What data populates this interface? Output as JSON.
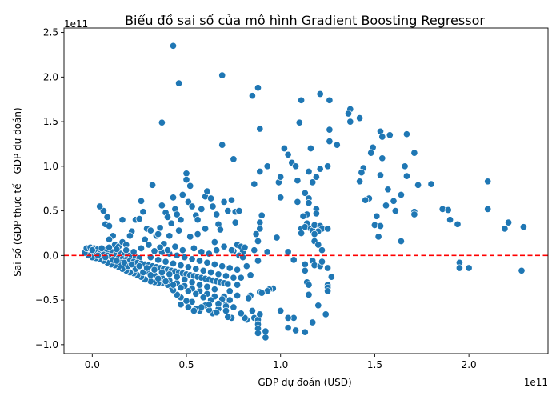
{
  "chart_data": {
    "type": "scatter",
    "title": "Biểu đồ sai số của mô hình Gradient Boosting Regressor",
    "xlabel": "GDP dự đoán (USD)",
    "ylabel": "Sai số (GDP thực tế - GDP dự đoán)",
    "x_offset_text": "1e11",
    "y_offset_text": "1e11",
    "xlim": [
      -0.15,
      2.42
    ],
    "ylim": [
      -1.1,
      2.55
    ],
    "x_ticks": [
      0,
      0.5,
      1.0,
      1.5,
      2.0
    ],
    "x_tick_labels": [
      "0.0",
      "0.5",
      "1.0",
      "1.5",
      "2.0"
    ],
    "y_ticks": [
      -1.0,
      -0.5,
      0.0,
      0.5,
      1.0,
      1.5,
      2.0,
      2.5
    ],
    "y_tick_labels": [
      "−1.0",
      "−0.5",
      "0.0",
      "0.5",
      "1.0",
      "1.5",
      "2.0",
      "2.5"
    ],
    "point_color": "#1f77b4",
    "reference_line": {
      "y": 0,
      "color": "#ff0000",
      "style": "dashed"
    },
    "grid": false,
    "points": [
      [
        0.43,
        2.35
      ],
      [
        0.46,
        1.93
      ],
      [
        0.69,
        2.02
      ],
      [
        0.88,
        1.88
      ],
      [
        0.85,
        1.79
      ],
      [
        0.37,
        1.49
      ],
      [
        1.11,
        1.74
      ],
      [
        1.21,
        1.81
      ],
      [
        1.26,
        1.74
      ],
      [
        0.89,
        1.42
      ],
      [
        1.1,
        1.49
      ],
      [
        1.37,
        1.64
      ],
      [
        1.36,
        1.59
      ],
      [
        1.42,
        1.54
      ],
      [
        1.37,
        1.5
      ],
      [
        1.53,
        1.39
      ],
      [
        1.54,
        1.33
      ],
      [
        1.58,
        1.35
      ],
      [
        1.67,
        1.36
      ],
      [
        1.26,
        1.41
      ],
      [
        1.26,
        1.28
      ],
      [
        1.3,
        1.24
      ],
      [
        1.02,
        1.2
      ],
      [
        1.16,
        1.2
      ],
      [
        1.49,
        1.21
      ],
      [
        1.48,
        1.15
      ],
      [
        1.54,
        1.09
      ],
      [
        1.71,
        1.15
      ],
      [
        1.66,
        1.0
      ],
      [
        0.69,
        1.24
      ],
      [
        0.75,
        1.08
      ],
      [
        1.04,
        1.13
      ],
      [
        1.06,
        1.04
      ],
      [
        1.08,
        1.0
      ],
      [
        1.21,
        0.97
      ],
      [
        1.25,
        1.0
      ],
      [
        1.15,
        0.94
      ],
      [
        1.44,
        0.98
      ],
      [
        1.43,
        0.93
      ],
      [
        1.53,
        0.9
      ],
      [
        1.67,
        0.89
      ],
      [
        1.73,
        0.79
      ],
      [
        1.8,
        0.8
      ],
      [
        0.89,
        0.94
      ],
      [
        0.93,
        1.0
      ],
      [
        0.86,
        0.8
      ],
      [
        0.99,
        0.82
      ],
      [
        1.0,
        0.88
      ],
      [
        1.09,
        0.84
      ],
      [
        1.17,
        0.82
      ],
      [
        1.19,
        0.88
      ],
      [
        1.42,
        0.83
      ],
      [
        1.57,
        0.74
      ],
      [
        1.64,
        0.68
      ],
      [
        1.6,
        0.61
      ],
      [
        1.56,
        0.56
      ],
      [
        1.61,
        0.5
      ],
      [
        1.71,
        0.49
      ],
      [
        1.71,
        0.46
      ],
      [
        1.86,
        0.52
      ],
      [
        1.89,
        0.51
      ],
      [
        1.9,
        0.4
      ],
      [
        1.94,
        0.35
      ],
      [
        2.1,
        0.83
      ],
      [
        2.1,
        0.52
      ],
      [
        2.21,
        0.37
      ],
      [
        2.19,
        0.3
      ],
      [
        2.29,
        0.32
      ],
      [
        2.28,
        -0.17
      ],
      [
        1.95,
        -0.08
      ],
      [
        1.95,
        -0.14
      ],
      [
        2.0,
        -0.14
      ],
      [
        1.47,
        0.64
      ],
      [
        1.45,
        0.62
      ],
      [
        1.51,
        0.44
      ],
      [
        1.5,
        0.34
      ],
      [
        1.53,
        0.33
      ],
      [
        1.52,
        0.21
      ],
      [
        1.64,
        0.16
      ],
      [
        1.0,
        0.65
      ],
      [
        1.09,
        0.6
      ],
      [
        1.13,
        0.7
      ],
      [
        1.15,
        0.64
      ],
      [
        1.15,
        0.59
      ],
      [
        1.19,
        0.52
      ],
      [
        1.19,
        0.47
      ],
      [
        1.14,
        0.46
      ],
      [
        1.12,
        0.44
      ],
      [
        1.14,
        0.36
      ],
      [
        1.11,
        0.3
      ],
      [
        1.13,
        0.32
      ],
      [
        1.16,
        0.3
      ],
      [
        1.17,
        0.28
      ],
      [
        1.18,
        0.34
      ],
      [
        1.21,
        0.33
      ],
      [
        1.22,
        0.3
      ],
      [
        1.25,
        0.3
      ],
      [
        1.2,
        0.27
      ],
      [
        1.18,
        0.24
      ],
      [
        1.11,
        0.25
      ],
      [
        1.18,
        0.16
      ],
      [
        1.2,
        0.12
      ],
      [
        1.22,
        0.06
      ],
      [
        1.04,
        0.04
      ],
      [
        0.98,
        0.2
      ],
      [
        0.9,
        0.45
      ],
      [
        0.89,
        0.37
      ],
      [
        0.89,
        0.3
      ],
      [
        0.87,
        0.24
      ],
      [
        0.88,
        0.16
      ],
      [
        0.86,
        0.06
      ],
      [
        0.93,
        0.04
      ],
      [
        0.88,
        -0.06
      ],
      [
        0.76,
        0.49
      ],
      [
        0.78,
        0.5
      ],
      [
        0.77,
        0.12
      ],
      [
        0.75,
        0.05
      ],
      [
        0.8,
        0.04
      ],
      [
        0.79,
        0.1
      ],
      [
        0.81,
        0.09
      ],
      [
        1.07,
        -0.05
      ],
      [
        1.13,
        -0.1
      ],
      [
        1.17,
        -0.06
      ],
      [
        1.18,
        -0.11
      ],
      [
        1.21,
        -0.12
      ],
      [
        1.25,
        -0.14
      ],
      [
        1.13,
        -0.17
      ],
      [
        1.14,
        -0.3
      ],
      [
        1.15,
        -0.33
      ],
      [
        1.15,
        -0.44
      ],
      [
        1.2,
        -0.56
      ],
      [
        1.25,
        -0.33
      ],
      [
        1.25,
        -0.36
      ],
      [
        1.25,
        -0.4
      ],
      [
        1.27,
        -0.24
      ],
      [
        1.22,
        -0.07
      ],
      [
        1.17,
        -0.75
      ],
      [
        1.13,
        -0.86
      ],
      [
        1.07,
        -0.7
      ],
      [
        1.04,
        -0.7
      ],
      [
        1.04,
        -0.81
      ],
      [
        1.08,
        -0.84
      ],
      [
        1.0,
        -0.62
      ],
      [
        1.24,
        -0.66
      ],
      [
        0.96,
        -0.37
      ],
      [
        0.94,
        -0.38
      ],
      [
        0.93,
        -0.4
      ],
      [
        0.89,
        -0.41
      ],
      [
        0.9,
        -0.42
      ],
      [
        0.84,
        -0.45
      ],
      [
        0.83,
        -0.48
      ],
      [
        0.85,
        -0.62
      ],
      [
        0.86,
        -0.7
      ],
      [
        0.88,
        -0.72
      ],
      [
        0.88,
        -0.77
      ],
      [
        0.89,
        -0.66
      ],
      [
        0.88,
        -0.82
      ],
      [
        0.92,
        -0.85
      ],
      [
        0.92,
        -0.92
      ],
      [
        0.88,
        -0.87
      ],
      [
        0.82,
        -0.72
      ],
      [
        0.81,
        -0.7
      ],
      [
        0.79,
        -0.65
      ],
      [
        0.74,
        -0.7
      ],
      [
        0.72,
        -0.69
      ],
      [
        0.7,
        -0.46
      ],
      [
        0.71,
        -0.55
      ],
      [
        0.67,
        -0.6
      ],
      [
        0.64,
        -0.65
      ],
      [
        0.62,
        -0.61
      ],
      [
        0.6,
        -0.56
      ],
      [
        0.57,
        -0.62
      ],
      [
        0.55,
        -0.6
      ],
      [
        0.53,
        -0.52
      ],
      [
        0.5,
        -0.51
      ],
      [
        0.47,
        -0.47
      ],
      [
        0.45,
        -0.44
      ],
      [
        0.43,
        -0.39
      ],
      [
        0.42,
        -0.35
      ],
      [
        0.4,
        -0.33
      ],
      [
        0.37,
        -0.31
      ],
      [
        0.35,
        -0.31
      ],
      [
        0.33,
        -0.3
      ],
      [
        0.31,
        -0.29
      ],
      [
        0.28,
        -0.27
      ],
      [
        0.26,
        -0.24
      ],
      [
        0.24,
        -0.22
      ],
      [
        0.22,
        -0.2
      ],
      [
        0.2,
        -0.19
      ],
      [
        0.18,
        -0.17
      ],
      [
        0.16,
        -0.15
      ],
      [
        0.14,
        -0.13
      ],
      [
        0.12,
        -0.11
      ],
      [
        0.1,
        -0.1
      ],
      [
        0.08,
        -0.08
      ],
      [
        0.06,
        -0.06
      ],
      [
        0.04,
        -0.04
      ],
      [
        0.02,
        -0.03
      ],
      [
        0.0,
        -0.02
      ],
      [
        -0.02,
        0.0
      ],
      [
        -0.04,
        0.03
      ],
      [
        -0.03,
        0.08
      ],
      [
        -0.01,
        0.09
      ],
      [
        0.01,
        0.08
      ],
      [
        0.03,
        0.07
      ],
      [
        0.05,
        0.07
      ],
      [
        0.07,
        0.06
      ],
      [
        0.09,
        0.05
      ],
      [
        0.11,
        0.04
      ],
      [
        0.13,
        0.03
      ],
      [
        0.15,
        0.02
      ],
      [
        0.17,
        0.01
      ],
      [
        0.19,
        0.0
      ],
      [
        0.21,
        -0.01
      ],
      [
        0.23,
        -0.02
      ],
      [
        0.25,
        -0.03
      ],
      [
        0.02,
        0.03
      ],
      [
        0.04,
        0.02
      ],
      [
        0.06,
        0.01
      ],
      [
        0.08,
        0.0
      ],
      [
        0.1,
        -0.01
      ],
      [
        0.12,
        -0.02
      ],
      [
        0.14,
        -0.03
      ],
      [
        0.16,
        -0.04
      ],
      [
        0.18,
        -0.05
      ],
      [
        0.2,
        -0.06
      ],
      [
        0.22,
        -0.07
      ],
      [
        0.24,
        -0.08
      ],
      [
        0.26,
        -0.09
      ],
      [
        0.28,
        -0.1
      ],
      [
        0.3,
        -0.11
      ],
      [
        0.32,
        -0.12
      ],
      [
        0.34,
        -0.13
      ],
      [
        0.36,
        -0.14
      ],
      [
        0.38,
        -0.15
      ],
      [
        0.4,
        -0.16
      ],
      [
        0.42,
        -0.17
      ],
      [
        0.44,
        -0.18
      ],
      [
        0.46,
        -0.19
      ],
      [
        0.48,
        -0.2
      ],
      [
        0.5,
        -0.21
      ],
      [
        0.52,
        -0.22
      ],
      [
        0.54,
        -0.23
      ],
      [
        0.56,
        -0.24
      ],
      [
        0.58,
        -0.25
      ],
      [
        0.6,
        -0.26
      ],
      [
        0.62,
        -0.27
      ],
      [
        0.64,
        -0.28
      ],
      [
        0.66,
        -0.29
      ],
      [
        0.68,
        -0.3
      ],
      [
        0.7,
        -0.31
      ],
      [
        0.72,
        -0.32
      ],
      [
        0.29,
        -0.18
      ],
      [
        0.33,
        -0.22
      ],
      [
        0.37,
        -0.25
      ],
      [
        0.41,
        -0.28
      ],
      [
        0.45,
        -0.31
      ],
      [
        0.49,
        -0.34
      ],
      [
        0.53,
        -0.37
      ],
      [
        0.57,
        -0.4
      ],
      [
        0.61,
        -0.43
      ],
      [
        0.65,
        -0.46
      ],
      [
        0.69,
        -0.49
      ],
      [
        0.73,
        -0.5
      ],
      [
        0.31,
        -0.02
      ],
      [
        0.35,
        -0.05
      ],
      [
        0.39,
        -0.07
      ],
      [
        0.43,
        -0.09
      ],
      [
        0.47,
        -0.11
      ],
      [
        0.51,
        -0.13
      ],
      [
        0.55,
        -0.15
      ],
      [
        0.59,
        -0.17
      ],
      [
        0.63,
        -0.19
      ],
      [
        0.67,
        -0.21
      ],
      [
        0.71,
        -0.23
      ],
      [
        0.75,
        -0.25
      ],
      [
        0.33,
        0.05
      ],
      [
        0.37,
        0.04
      ],
      [
        0.41,
        0.02
      ],
      [
        0.45,
        0.0
      ],
      [
        0.49,
        -0.02
      ],
      [
        0.53,
        -0.04
      ],
      [
        0.57,
        -0.06
      ],
      [
        0.61,
        -0.08
      ],
      [
        0.65,
        -0.1
      ],
      [
        0.69,
        -0.12
      ],
      [
        0.73,
        -0.14
      ],
      [
        0.77,
        -0.16
      ],
      [
        0.06,
        0.5
      ],
      [
        0.08,
        0.43
      ],
      [
        0.07,
        0.35
      ],
      [
        0.09,
        0.33
      ],
      [
        0.11,
        0.22
      ],
      [
        0.09,
        0.18
      ],
      [
        0.12,
        0.12
      ],
      [
        0.14,
        0.1
      ],
      [
        0.16,
        0.15
      ],
      [
        0.18,
        0.12
      ],
      [
        0.21,
        0.27
      ],
      [
        0.23,
        0.4
      ],
      [
        0.25,
        0.41
      ],
      [
        0.26,
        0.61
      ],
      [
        0.27,
        0.49
      ],
      [
        0.29,
        0.3
      ],
      [
        0.31,
        0.28
      ],
      [
        0.32,
        0.79
      ],
      [
        0.34,
        0.22
      ],
      [
        0.36,
        0.31
      ],
      [
        0.37,
        0.56
      ],
      [
        0.39,
        0.48
      ],
      [
        0.4,
        0.43
      ],
      [
        0.42,
        0.36
      ],
      [
        0.43,
        0.65
      ],
      [
        0.44,
        0.52
      ],
      [
        0.45,
        0.46
      ],
      [
        0.47,
        0.4
      ],
      [
        0.48,
        0.68
      ],
      [
        0.5,
        0.92
      ],
      [
        0.5,
        0.85
      ],
      [
        0.52,
        0.78
      ],
      [
        0.51,
        0.6
      ],
      [
        0.53,
        0.55
      ],
      [
        0.55,
        0.45
      ],
      [
        0.56,
        0.4
      ],
      [
        0.58,
        0.52
      ],
      [
        0.6,
        0.66
      ],
      [
        0.61,
        0.72
      ],
      [
        0.63,
        0.64
      ],
      [
        0.64,
        0.55
      ],
      [
        0.66,
        0.46
      ],
      [
        0.67,
        0.35
      ],
      [
        0.68,
        0.29
      ],
      [
        0.7,
        0.6
      ],
      [
        0.72,
        0.5
      ],
      [
        0.74,
        0.62
      ],
      [
        0.76,
        0.37
      ],
      [
        0.04,
        0.55
      ],
      [
        0.16,
        0.4
      ],
      [
        0.2,
        0.22
      ],
      [
        0.28,
        0.18
      ],
      [
        0.35,
        0.24
      ],
      [
        0.38,
        0.13
      ],
      [
        0.41,
        0.22
      ],
      [
        0.46,
        0.28
      ],
      [
        0.52,
        0.21
      ],
      [
        0.56,
        0.24
      ],
      [
        0.6,
        0.3
      ],
      [
        0.65,
        0.15
      ],
      [
        0.7,
        0.1
      ],
      [
        0.74,
        0.06
      ],
      [
        0.78,
        0.0
      ],
      [
        0.8,
        -0.02
      ],
      [
        0.44,
        0.1
      ],
      [
        0.48,
        0.06
      ],
      [
        0.54,
        0.08
      ],
      [
        0.58,
        0.04
      ],
      [
        0.62,
        0.02
      ],
      [
        0.66,
        0.06
      ],
      [
        0.4,
        0.06
      ],
      [
        0.36,
        0.09
      ],
      [
        0.3,
        0.12
      ],
      [
        0.26,
        0.08
      ],
      [
        0.22,
        0.04
      ],
      [
        0.18,
        0.06
      ],
      [
        0.13,
        0.07
      ],
      [
        0.09,
        0.09
      ],
      [
        0.05,
        0.08
      ],
      [
        0.0,
        0.06
      ],
      [
        0.03,
        0.0
      ],
      [
        0.07,
        -0.02
      ],
      [
        0.11,
        -0.05
      ],
      [
        0.15,
        -0.08
      ],
      [
        0.19,
        -0.12
      ],
      [
        0.23,
        -0.15
      ],
      [
        0.27,
        -0.19
      ],
      [
        0.31,
        -0.22
      ],
      [
        0.35,
        -0.26
      ],
      [
        0.39,
        -0.29
      ],
      [
        0.43,
        -0.33
      ],
      [
        0.47,
        -0.36
      ],
      [
        0.51,
        -0.4
      ],
      [
        0.55,
        -0.43
      ],
      [
        0.59,
        -0.47
      ],
      [
        0.63,
        -0.5
      ],
      [
        0.67,
        -0.54
      ],
      [
        0.71,
        -0.57
      ],
      [
        0.65,
        -0.38
      ],
      [
        0.61,
        -0.35
      ],
      [
        0.57,
        -0.33
      ],
      [
        0.53,
        -0.3
      ],
      [
        0.49,
        -0.27
      ],
      [
        0.45,
        -0.24
      ],
      [
        0.41,
        -0.21
      ],
      [
        0.37,
        -0.19
      ],
      [
        0.33,
        -0.16
      ],
      [
        0.29,
        -0.14
      ],
      [
        0.25,
        -0.12
      ],
      [
        0.21,
        -0.1
      ],
      [
        0.17,
        -0.08
      ],
      [
        0.13,
        -0.06
      ],
      [
        0.73,
        -0.4
      ],
      [
        0.77,
        -0.33
      ],
      [
        0.79,
        -0.25
      ],
      [
        0.82,
        -0.12
      ],
      [
        0.84,
        -0.22
      ],
      [
        0.77,
        -0.45
      ],
      [
        0.75,
        -0.58
      ],
      [
        0.71,
        -0.62
      ],
      [
        0.47,
        -0.55
      ],
      [
        0.51,
        -0.58
      ],
      [
        0.54,
        -0.62
      ],
      [
        0.58,
        -0.58
      ],
      [
        0.62,
        -0.55
      ],
      [
        0.66,
        -0.64
      ]
    ]
  }
}
